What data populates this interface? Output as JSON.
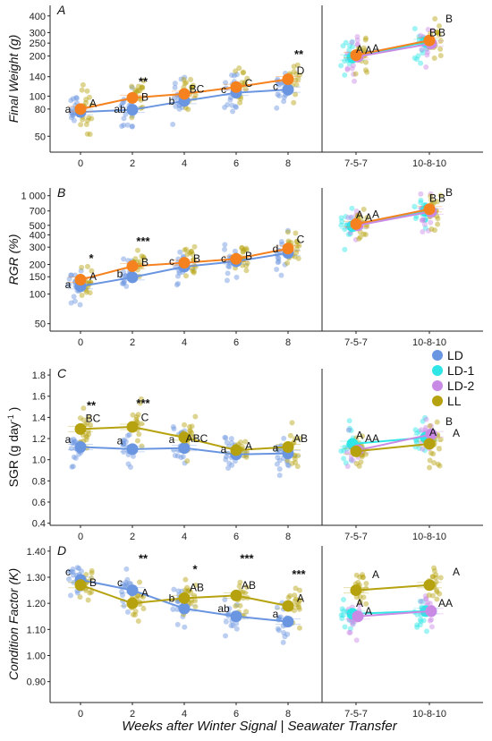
{
  "colors": {
    "LD": "#6a95e0",
    "LD-1": "#2ee6e6",
    "LD-2": "#c98ae6",
    "LL": "#b5a20e",
    "LL_line": "#f5821f"
  },
  "x_title": "Weeks after Winter Signal | Seawater Transfer",
  "legend": [
    {
      "key": "LD",
      "label": "LD"
    },
    {
      "key": "LD-1",
      "label": "LD-1"
    },
    {
      "key": "LD-2",
      "label": "LD-2"
    },
    {
      "key": "LL",
      "label": "LL"
    }
  ],
  "chart_data": [
    {
      "panel": "A",
      "type": "scatter",
      "ylabel": "Final Weight (g)",
      "yscale": "log",
      "ylim": [
        38,
        480
      ],
      "yticks": [
        50,
        80,
        100,
        140,
        200,
        250,
        300,
        400
      ],
      "categories": [
        "0",
        "2",
        "4",
        "6",
        "8",
        "7-5-7",
        "10-8-10"
      ],
      "series": [
        {
          "name": "LD",
          "color": "LD",
          "means": [
            {
              "x": "0",
              "y": 76
            },
            {
              "x": "2",
              "y": 79
            },
            {
              "x": "4",
              "y": 92
            },
            {
              "x": "6",
              "y": 106
            },
            {
              "x": "8",
              "y": 112
            }
          ]
        },
        {
          "name": "LL",
          "color": "LL_line",
          "means": [
            {
              "x": "0",
              "y": 80
            },
            {
              "x": "2",
              "y": 97
            },
            {
              "x": "4",
              "y": 104
            },
            {
              "x": "6",
              "y": 117
            },
            {
              "x": "8",
              "y": 134
            }
          ]
        },
        {
          "name": "LD-1",
          "color": "LD-1",
          "means": [
            {
              "x": "7-5-7",
              "y": 195
            },
            {
              "x": "10-8-10",
              "y": 255
            }
          ]
        },
        {
          "name": "LD-2",
          "color": "LD-2",
          "means": [
            {
              "x": "7-5-7",
              "y": 198
            },
            {
              "x": "10-8-10",
              "y": 248
            }
          ]
        },
        {
          "name": "LL",
          "color": "LL_line",
          "means": [
            {
              "x": "7-5-7",
              "y": 203
            },
            {
              "x": "10-8-10",
              "y": 262
            }
          ]
        }
      ],
      "annotations": [
        {
          "x": "0",
          "y": 80,
          "text": "a",
          "side": "left"
        },
        {
          "x": "0",
          "y": 88,
          "text": "A",
          "side": "right"
        },
        {
          "x": "2",
          "y": 80,
          "text": "ab",
          "side": "left"
        },
        {
          "x": "2",
          "y": 98,
          "text": "B",
          "side": "right"
        },
        {
          "x": "2",
          "y": 128,
          "text": "**",
          "side": "star"
        },
        {
          "x": "4",
          "y": 92,
          "text": "b",
          "side": "left"
        },
        {
          "x": "4",
          "y": 113,
          "text": "BC",
          "side": "right"
        },
        {
          "x": "6",
          "y": 112,
          "text": "c",
          "side": "left"
        },
        {
          "x": "6",
          "y": 125,
          "text": "C",
          "side": "right"
        },
        {
          "x": "8",
          "y": 118,
          "text": "c",
          "side": "left"
        },
        {
          "x": "8",
          "y": 155,
          "text": "D",
          "side": "right"
        },
        {
          "x": "8",
          "y": 205,
          "text": "**",
          "side": "star"
        },
        {
          "x": "7-5-7",
          "y": 225,
          "text": "A",
          "side": "mid"
        },
        {
          "x": "7-5-7",
          "y": 222,
          "text": "A",
          "side": "right"
        },
        {
          "x": "7-5-7",
          "y": 228,
          "text": "A",
          "side": "far"
        },
        {
          "x": "10-8-10",
          "y": 300,
          "text": "B",
          "side": "mid"
        },
        {
          "x": "10-8-10",
          "y": 300,
          "text": "B",
          "side": "right"
        },
        {
          "x": "10-8-10",
          "y": 380,
          "text": "B",
          "side": "far"
        }
      ]
    },
    {
      "panel": "B",
      "type": "scatter",
      "ylabel": "RGR (%)",
      "yscale": "log",
      "ylim": [
        42,
        1200
      ],
      "yticks": [
        50,
        100,
        150,
        200,
        300,
        400,
        500,
        700,
        1000
      ],
      "yticklabels": [
        "50",
        "100",
        "150",
        "200",
        "300",
        "400",
        "500",
        "700",
        "1 000"
      ],
      "categories": [
        "0",
        "2",
        "4",
        "6",
        "8",
        "7-5-7",
        "10-8-10"
      ],
      "series": [
        {
          "name": "LD",
          "color": "LD",
          "means": [
            {
              "x": "0",
              "y": 120
            },
            {
              "x": "2",
              "y": 148
            },
            {
              "x": "4",
              "y": 190
            },
            {
              "x": "6",
              "y": 215
            },
            {
              "x": "8",
              "y": 262
            }
          ]
        },
        {
          "name": "LL",
          "color": "LL_line",
          "means": [
            {
              "x": "0",
              "y": 140
            },
            {
              "x": "2",
              "y": 192
            },
            {
              "x": "4",
              "y": 208
            },
            {
              "x": "6",
              "y": 228
            },
            {
              "x": "8",
              "y": 290
            }
          ]
        },
        {
          "name": "LD-1",
          "color": "LD-1",
          "means": [
            {
              "x": "7-5-7",
              "y": 490
            },
            {
              "x": "10-8-10",
              "y": 700
            }
          ]
        },
        {
          "name": "LD-2",
          "color": "LD-2",
          "means": [
            {
              "x": "7-5-7",
              "y": 500
            },
            {
              "x": "10-8-10",
              "y": 690
            }
          ]
        },
        {
          "name": "LL",
          "color": "LL_line",
          "means": [
            {
              "x": "7-5-7",
              "y": 515
            },
            {
              "x": "10-8-10",
              "y": 730
            }
          ]
        }
      ],
      "annotations": [
        {
          "x": "0",
          "y": 125,
          "text": "a",
          "side": "left"
        },
        {
          "x": "0",
          "y": 150,
          "text": "A",
          "side": "right"
        },
        {
          "x": "0",
          "y": 230,
          "text": "*",
          "side": "star"
        },
        {
          "x": "2",
          "y": 160,
          "text": "b",
          "side": "left"
        },
        {
          "x": "2",
          "y": 210,
          "text": "B",
          "side": "right"
        },
        {
          "x": "2",
          "y": 340,
          "text": "***",
          "side": "star"
        },
        {
          "x": "4",
          "y": 215,
          "text": "c",
          "side": "left"
        },
        {
          "x": "4",
          "y": 230,
          "text": "B",
          "side": "right"
        },
        {
          "x": "6",
          "y": 230,
          "text": "c",
          "side": "left"
        },
        {
          "x": "6",
          "y": 245,
          "text": "B",
          "side": "right"
        },
        {
          "x": "8",
          "y": 290,
          "text": "d",
          "side": "left"
        },
        {
          "x": "8",
          "y": 360,
          "text": "C",
          "side": "right"
        },
        {
          "x": "7-5-7",
          "y": 640,
          "text": "A",
          "side": "mid"
        },
        {
          "x": "7-5-7",
          "y": 600,
          "text": "A",
          "side": "right"
        },
        {
          "x": "7-5-7",
          "y": 650,
          "text": "A",
          "side": "far"
        },
        {
          "x": "10-8-10",
          "y": 940,
          "text": "B",
          "side": "mid"
        },
        {
          "x": "10-8-10",
          "y": 940,
          "text": "B",
          "side": "right"
        },
        {
          "x": "10-8-10",
          "y": 1080,
          "text": "B",
          "side": "far"
        }
      ]
    },
    {
      "panel": "C",
      "type": "scatter",
      "ylabel": "SGR (g day",
      "ylabel_sup": "-1",
      "ylabel_end": ")",
      "yscale": "linear",
      "ylim": [
        0.38,
        1.86
      ],
      "yticks": [
        0.4,
        0.6,
        0.8,
        1.0,
        1.2,
        1.4,
        1.6,
        1.8
      ],
      "yticklabels": [
        "0.4",
        "0.6",
        "0.8",
        "1.0",
        "1.2",
        "1.4",
        "1.6",
        "1.8"
      ],
      "categories": [
        "0",
        "2",
        "4",
        "6",
        "8",
        "7-5-7",
        "10-8-10"
      ],
      "series": [
        {
          "name": "LD",
          "color": "LD",
          "means": [
            {
              "x": "0",
              "y": 1.12
            },
            {
              "x": "2",
              "y": 1.1
            },
            {
              "x": "4",
              "y": 1.11
            },
            {
              "x": "6",
              "y": 1.05
            },
            {
              "x": "8",
              "y": 1.06
            }
          ]
        },
        {
          "name": "LL",
          "color": "LL",
          "means": [
            {
              "x": "0",
              "y": 1.29
            },
            {
              "x": "2",
              "y": 1.31
            },
            {
              "x": "4",
              "y": 1.21
            },
            {
              "x": "6",
              "y": 1.09
            },
            {
              "x": "8",
              "y": 1.12
            }
          ]
        },
        {
          "name": "LD-1",
          "color": "LD-1",
          "means": [
            {
              "x": "7-5-7",
              "y": 1.15
            },
            {
              "x": "10-8-10",
              "y": 1.21
            }
          ]
        },
        {
          "name": "LD-2",
          "color": "LD-2",
          "means": [
            {
              "x": "7-5-7",
              "y": 1.09
            },
            {
              "x": "10-8-10",
              "y": 1.24
            }
          ]
        },
        {
          "name": "LL",
          "color": "LL",
          "means": [
            {
              "x": "7-5-7",
              "y": 1.08
            },
            {
              "x": "10-8-10",
              "y": 1.15
            }
          ]
        }
      ],
      "annotations": [
        {
          "x": "0",
          "y": 1.19,
          "text": "a",
          "side": "left"
        },
        {
          "x": "0",
          "y": 1.39,
          "text": "BC",
          "side": "right"
        },
        {
          "x": "0",
          "y": 1.51,
          "text": "**",
          "side": "star"
        },
        {
          "x": "2",
          "y": 1.18,
          "text": "a",
          "side": "left"
        },
        {
          "x": "2",
          "y": 1.4,
          "text": "C",
          "side": "right"
        },
        {
          "x": "2",
          "y": 1.53,
          "text": "***",
          "side": "star"
        },
        {
          "x": "4",
          "y": 1.19,
          "text": "a",
          "side": "left"
        },
        {
          "x": "4",
          "y": 1.2,
          "text": "ABC",
          "side": "right"
        },
        {
          "x": "6",
          "y": 1.1,
          "text": "a",
          "side": "left"
        },
        {
          "x": "6",
          "y": 1.13,
          "text": "A",
          "side": "right"
        },
        {
          "x": "8",
          "y": 1.11,
          "text": "a",
          "side": "left"
        },
        {
          "x": "8",
          "y": 1.2,
          "text": "AB",
          "side": "right"
        },
        {
          "x": "7-5-7",
          "y": 1.23,
          "text": "A",
          "side": "mid"
        },
        {
          "x": "7-5-7",
          "y": 1.2,
          "text": "A",
          "side": "right"
        },
        {
          "x": "7-5-7",
          "y": 1.2,
          "text": "A",
          "side": "far"
        },
        {
          "x": "10-8-10",
          "y": 1.26,
          "text": "A",
          "side": "mid"
        },
        {
          "x": "10-8-10",
          "y": 1.36,
          "text": "B",
          "side": "far"
        },
        {
          "x": "10-8-10",
          "y": 1.25,
          "text": "A",
          "side": "far2"
        }
      ]
    },
    {
      "panel": "D",
      "type": "scatter",
      "ylabel": "Condition Factor (K)",
      "yscale": "linear",
      "ylim": [
        0.82,
        1.42
      ],
      "yticks": [
        0.9,
        1.0,
        1.1,
        1.2,
        1.3,
        1.4
      ],
      "yticklabels": [
        "0.90",
        "1.00",
        "1.10",
        "1.20",
        "1.30",
        "1.40"
      ],
      "categories": [
        "0",
        "2",
        "4",
        "6",
        "8",
        "7-5-7",
        "10-8-10"
      ],
      "series": [
        {
          "name": "LD",
          "color": "LD",
          "means": [
            {
              "x": "0",
              "y": 1.29
            },
            {
              "x": "2",
              "y": 1.25
            },
            {
              "x": "4",
              "y": 1.18
            },
            {
              "x": "6",
              "y": 1.15
            },
            {
              "x": "8",
              "y": 1.13
            }
          ]
        },
        {
          "name": "LL",
          "color": "LL",
          "means": [
            {
              "x": "0",
              "y": 1.27
            },
            {
              "x": "2",
              "y": 1.2
            },
            {
              "x": "4",
              "y": 1.22
            },
            {
              "x": "6",
              "y": 1.23
            },
            {
              "x": "8",
              "y": 1.19
            }
          ]
        },
        {
          "name": "LD-1",
          "color": "LD-1",
          "means": [
            {
              "x": "7-5-7",
              "y": 1.16
            },
            {
              "x": "10-8-10",
              "y": 1.17
            }
          ]
        },
        {
          "name": "LD-2",
          "color": "LD-2",
          "means": [
            {
              "x": "7-5-7",
              "y": 1.15
            },
            {
              "x": "10-8-10",
              "y": 1.17
            }
          ]
        },
        {
          "name": "LL",
          "color": "LL",
          "means": [
            {
              "x": "7-5-7",
              "y": 1.25
            },
            {
              "x": "10-8-10",
              "y": 1.27
            }
          ]
        }
      ],
      "annotations": [
        {
          "x": "0",
          "y": 1.32,
          "text": "c",
          "side": "left"
        },
        {
          "x": "0",
          "y": 1.28,
          "text": "B",
          "side": "right"
        },
        {
          "x": "2",
          "y": 1.28,
          "text": "c",
          "side": "left"
        },
        {
          "x": "2",
          "y": 1.24,
          "text": "A",
          "side": "right"
        },
        {
          "x": "2",
          "y": 1.37,
          "text": "**",
          "side": "star"
        },
        {
          "x": "4",
          "y": 1.22,
          "text": "b",
          "side": "left"
        },
        {
          "x": "4",
          "y": 1.26,
          "text": "AB",
          "side": "right"
        },
        {
          "x": "4",
          "y": 1.33,
          "text": "*",
          "side": "star"
        },
        {
          "x": "6",
          "y": 1.18,
          "text": "ab",
          "side": "left"
        },
        {
          "x": "6",
          "y": 1.27,
          "text": "AB",
          "side": "right"
        },
        {
          "x": "6",
          "y": 1.37,
          "text": "***",
          "side": "star"
        },
        {
          "x": "8",
          "y": 1.16,
          "text": "a",
          "side": "left"
        },
        {
          "x": "8",
          "y": 1.22,
          "text": "A",
          "side": "right"
        },
        {
          "x": "8",
          "y": 1.31,
          "text": "***",
          "side": "star"
        },
        {
          "x": "7-5-7",
          "y": 1.2,
          "text": "A",
          "side": "mid"
        },
        {
          "x": "7-5-7",
          "y": 1.17,
          "text": "A",
          "side": "right"
        },
        {
          "x": "7-5-7",
          "y": 1.31,
          "text": "A",
          "side": "far"
        },
        {
          "x": "10-8-10",
          "y": 1.2,
          "text": "A",
          "side": "right"
        },
        {
          "x": "10-8-10",
          "y": 1.2,
          "text": "A",
          "side": "far"
        },
        {
          "x": "10-8-10",
          "y": 1.32,
          "text": "A",
          "side": "far2"
        }
      ]
    }
  ]
}
